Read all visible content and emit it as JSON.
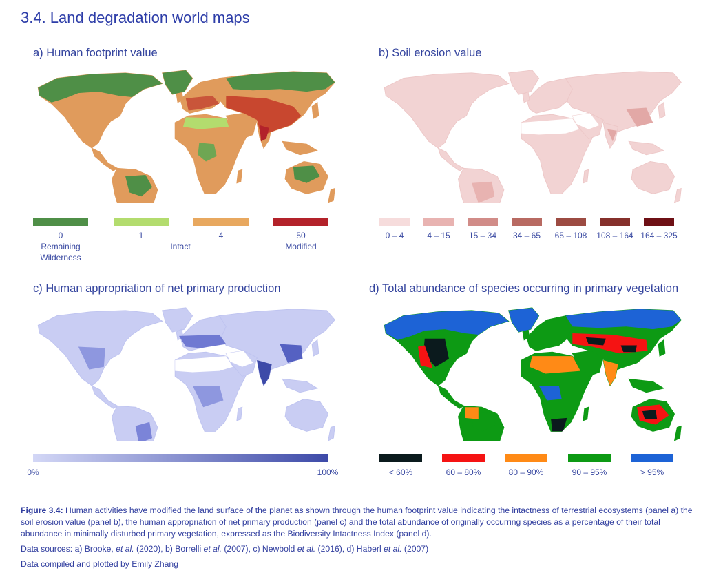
{
  "section_title": "3.4. Land degradation world maps",
  "panels": {
    "a": {
      "title": "a) Human footprint value",
      "legend": [
        {
          "value": "0",
          "label": "Remaining\nWilderness",
          "color": "#4f8f47"
        },
        {
          "value": "1",
          "label": "",
          "color": "#b3dc6e"
        },
        {
          "value": "4",
          "label": "Intact",
          "color": "#e8a85f"
        },
        {
          "value": "50",
          "label": "Modified",
          "color": "#b3222a"
        }
      ],
      "category_labels": {
        "intact": "Intact",
        "modified": "Modified",
        "wilderness": "Remaining Wilderness"
      }
    },
    "b": {
      "title": "b) Soil erosion value",
      "legend": [
        {
          "label": "0 – 4",
          "color": "#f6dcdc"
        },
        {
          "label": "4 – 15",
          "color": "#e8b3b1"
        },
        {
          "label": "15 – 34",
          "color": "#d18c88"
        },
        {
          "label": "34 – 65",
          "color": "#b86a62"
        },
        {
          "label": "65 – 108",
          "color": "#9c4b42"
        },
        {
          "label": "108 – 164",
          "color": "#85302b"
        },
        {
          "label": "164 – 325",
          "color": "#6e1015"
        }
      ]
    },
    "c": {
      "title": "c) Human appropriation of net primary production",
      "legend": {
        "min_label": "0%",
        "max_label": "100%",
        "color_low": "#d3d7f6",
        "color_high": "#3d4aa8"
      }
    },
    "d": {
      "title": "d) Total abundance of species occurring in primary vegetation",
      "legend": [
        {
          "label": "< 60%",
          "color": "#0b1a1d"
        },
        {
          "label": "60 – 80%",
          "color": "#f51313"
        },
        {
          "label": "80 – 90%",
          "color": "#ff8a16"
        },
        {
          "label": "90 – 95%",
          "color": "#0d9a14"
        },
        {
          "label": "> 95%",
          "color": "#1d63d6"
        }
      ]
    }
  },
  "caption": {
    "figure_label": "Figure 3.4:",
    "text": "Human activities have modified the land surface of the planet as shown through the human footprint value indicating the intactness of terrestrial ecosystems (panel a) the soil erosion value (panel b), the human appropriation of net primary production (panel c) and the total abundance of originally occurring species as a percentage of their total abundance in minimally disturbed primary vegetation, expressed as the Biodiversity Intactness Index (panel d).",
    "sources_prefix": "Data sources: a) Brooke, ",
    "sources_etal1": "et al.",
    "sources_mid1": " (2020), b) Borrelli ",
    "sources_etal2": "et al.",
    "sources_mid2": " (2007), c) Newbold ",
    "sources_etal3": "et al.",
    "sources_mid3": " (2016), d) Haberl ",
    "sources_etal4": "et al.",
    "sources_end": " (2007)",
    "compiled": "Data compiled and plotted by Emily Zhang"
  }
}
